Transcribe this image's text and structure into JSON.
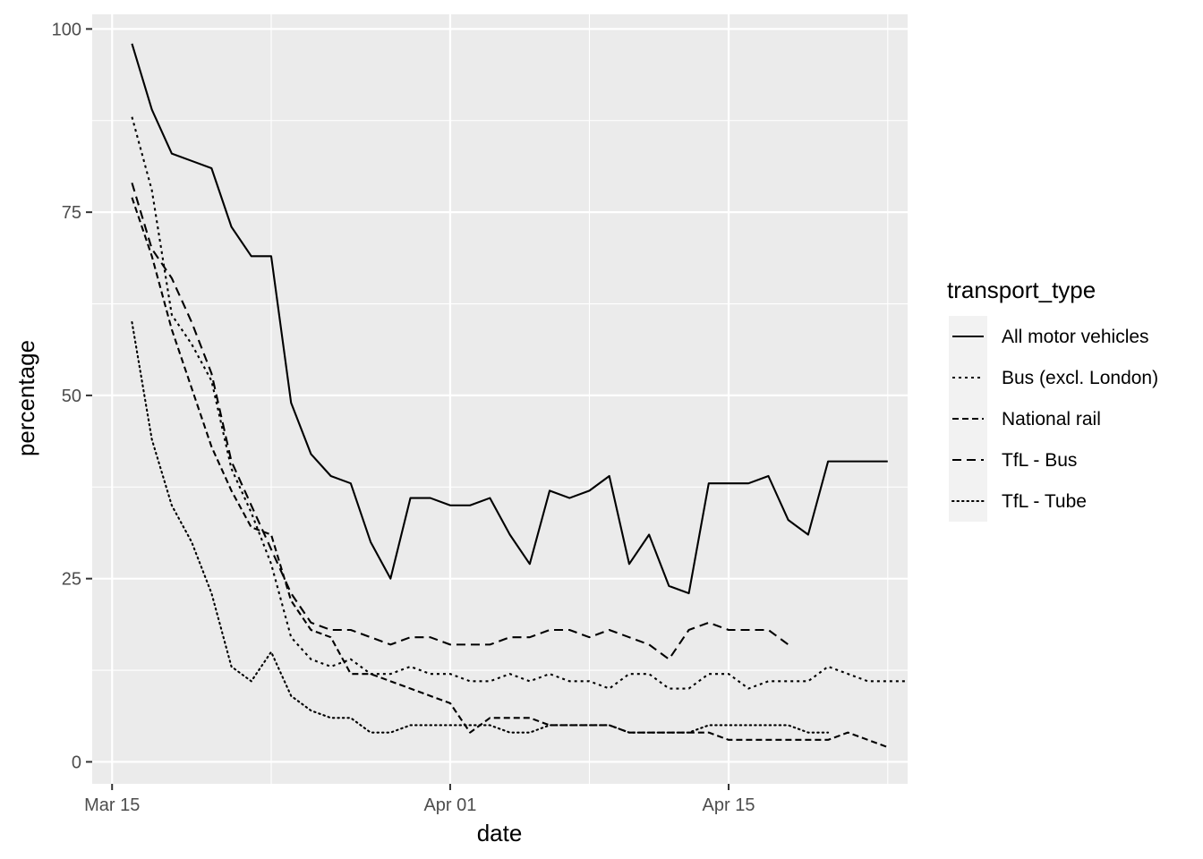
{
  "chart_data": {
    "type": "line",
    "title": "",
    "xlabel": "date",
    "ylabel": "percentage",
    "x_range": [
      "2020-03-14",
      "2020-04-24"
    ],
    "ylim": [
      -3,
      102
    ],
    "x_ticks": [
      {
        "date": "2020-03-15",
        "label": "Mar 15"
      },
      {
        "date": "2020-04-01",
        "label": "Apr 01"
      },
      {
        "date": "2020-04-15",
        "label": "Apr 15"
      }
    ],
    "x_minor_ticks": [
      "2020-03-23",
      "2020-04-08",
      "2020-04-23"
    ],
    "y_ticks": [
      0,
      25,
      50,
      75,
      100
    ],
    "y_minor_ticks": [
      12.5,
      37.5,
      62.5,
      87.5
    ],
    "grid": true,
    "legend": {
      "title": "transport_type",
      "position": "right"
    },
    "start_date": "2020-03-16",
    "series": [
      {
        "name": "All motor vehicles",
        "dash": "solid",
        "values": [
          98,
          89,
          83,
          82,
          81,
          73,
          69,
          69,
          49,
          42,
          39,
          38,
          30,
          25,
          36,
          36,
          35,
          35,
          36,
          31,
          27,
          37,
          36,
          37,
          39,
          27,
          31,
          24,
          23,
          38,
          38,
          38,
          39,
          33,
          31,
          41,
          41,
          41,
          41
        ]
      },
      {
        "name": "Bus (excl. London)",
        "dash": "short",
        "values": [
          88,
          78,
          61,
          57,
          52,
          40,
          34,
          27,
          17,
          14,
          13,
          14,
          12,
          12,
          13,
          12,
          12,
          11,
          11,
          12,
          11,
          12,
          11,
          11,
          10,
          12,
          12,
          10,
          10,
          12,
          12,
          10,
          11,
          11,
          11,
          13,
          12,
          11,
          11,
          11
        ]
      },
      {
        "name": "National rail",
        "dash": "medium",
        "values": [
          77,
          69,
          59,
          51,
          43,
          37,
          32,
          31,
          22,
          18,
          17,
          12,
          12,
          11,
          10,
          9,
          8,
          4,
          6,
          6,
          6,
          5,
          5,
          5,
          5,
          4,
          4,
          4,
          4,
          4,
          3,
          3,
          3,
          3,
          3,
          3,
          4,
          3,
          2
        ]
      },
      {
        "name": "TfL - Bus",
        "dash": "long",
        "values": [
          79,
          70,
          66,
          60,
          53,
          41,
          35,
          29,
          23,
          19,
          18,
          18,
          17,
          16,
          17,
          17,
          16,
          16,
          16,
          17,
          17,
          18,
          18,
          17,
          18,
          17,
          16,
          14,
          18,
          19,
          18,
          18,
          18,
          16
        ]
      },
      {
        "name": "TfL - Tube",
        "dash": "dotted",
        "values": [
          60,
          44,
          35,
          30,
          23,
          13,
          11,
          15,
          9,
          7,
          6,
          6,
          4,
          4,
          5,
          5,
          5,
          5,
          5,
          4,
          4,
          5,
          5,
          5,
          5,
          4,
          4,
          4,
          4,
          5,
          5,
          5,
          5,
          5,
          4,
          4
        ]
      }
    ]
  }
}
